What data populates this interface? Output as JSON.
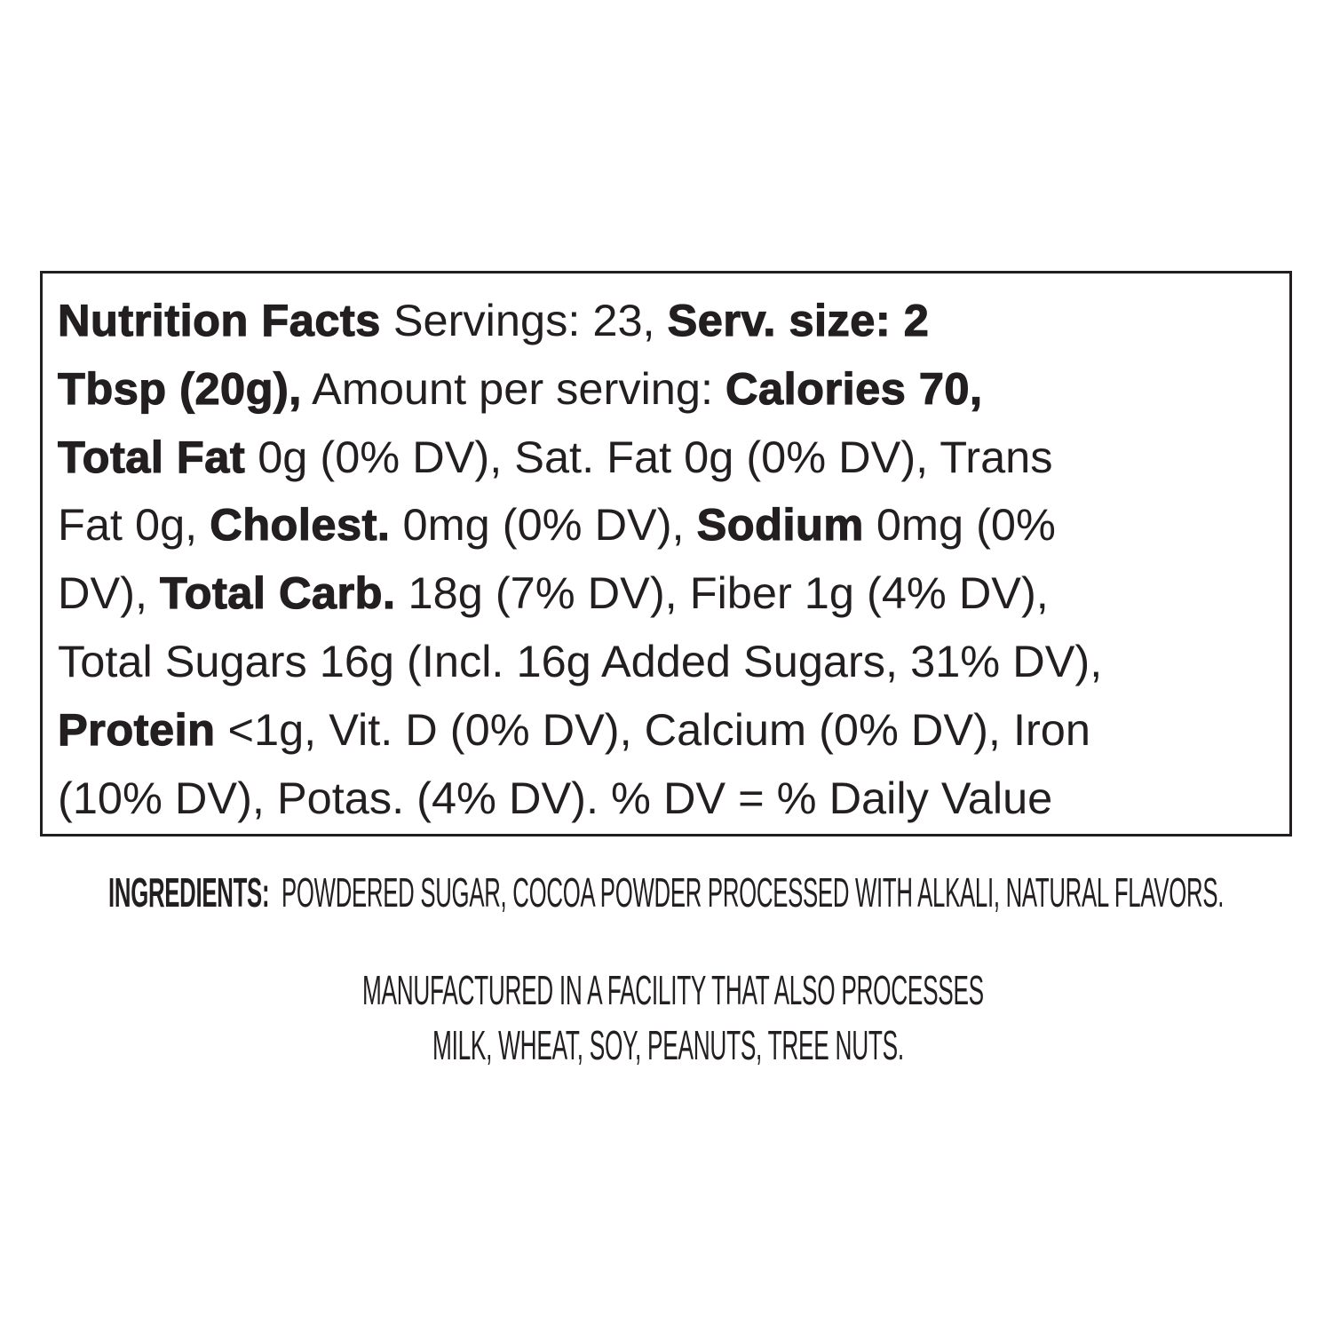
{
  "nutrition_facts": {
    "lines": [
      [
        {
          "t": "Nutrition Facts",
          "b": true
        },
        {
          "t": " Servings: 23, ",
          "b": false
        },
        {
          "t": "Serv. size: 2",
          "b": true
        }
      ],
      [
        {
          "t": "Tbsp (20g),",
          "b": true
        },
        {
          "t": " Amount per serving: ",
          "b": false
        },
        {
          "t": "Calories 70,",
          "b": true
        }
      ],
      [
        {
          "t": "Total Fat",
          "b": true
        },
        {
          "t": " 0g (0% DV), Sat. Fat 0g (0% DV), Trans",
          "b": false
        }
      ],
      [
        {
          "t": "Fat 0g, ",
          "b": false
        },
        {
          "t": "Cholest.",
          "b": true
        },
        {
          "t": " 0mg (0% DV), ",
          "b": false
        },
        {
          "t": "Sodium",
          "b": true
        },
        {
          "t": " 0mg (0%",
          "b": false
        }
      ],
      [
        {
          "t": "DV), ",
          "b": false
        },
        {
          "t": "Total Carb.",
          "b": true
        },
        {
          "t": " 18g (7% DV), Fiber 1g (4% DV),",
          "b": false
        }
      ],
      [
        {
          "t": "Total Sugars 16g (Incl. 16g Added Sugars, 31% DV),",
          "b": false
        }
      ],
      [
        {
          "t": "Protein",
          "b": true
        },
        {
          "t": " <1g, Vit. D (0% DV), Calcium (0% DV), Iron",
          "b": false
        }
      ],
      [
        {
          "t": "(10% DV), Potas. (4% DV). % DV = % Daily Value",
          "b": false
        }
      ]
    ]
  },
  "ingredients": {
    "label": "INGREDIENTS:",
    "text": "POWDERED SUGAR, COCOA POWDER PROCESSED WITH ALKALI, NATURAL FLAVORS."
  },
  "allergen": {
    "line1": "MANUFACTURED IN A FACILITY THAT ALSO PROCESSES",
    "line2": "MILK, WHEAT, SOY, PEANUTS, TREE NUTS."
  },
  "colors": {
    "text": "#231f20",
    "background": "#ffffff"
  }
}
